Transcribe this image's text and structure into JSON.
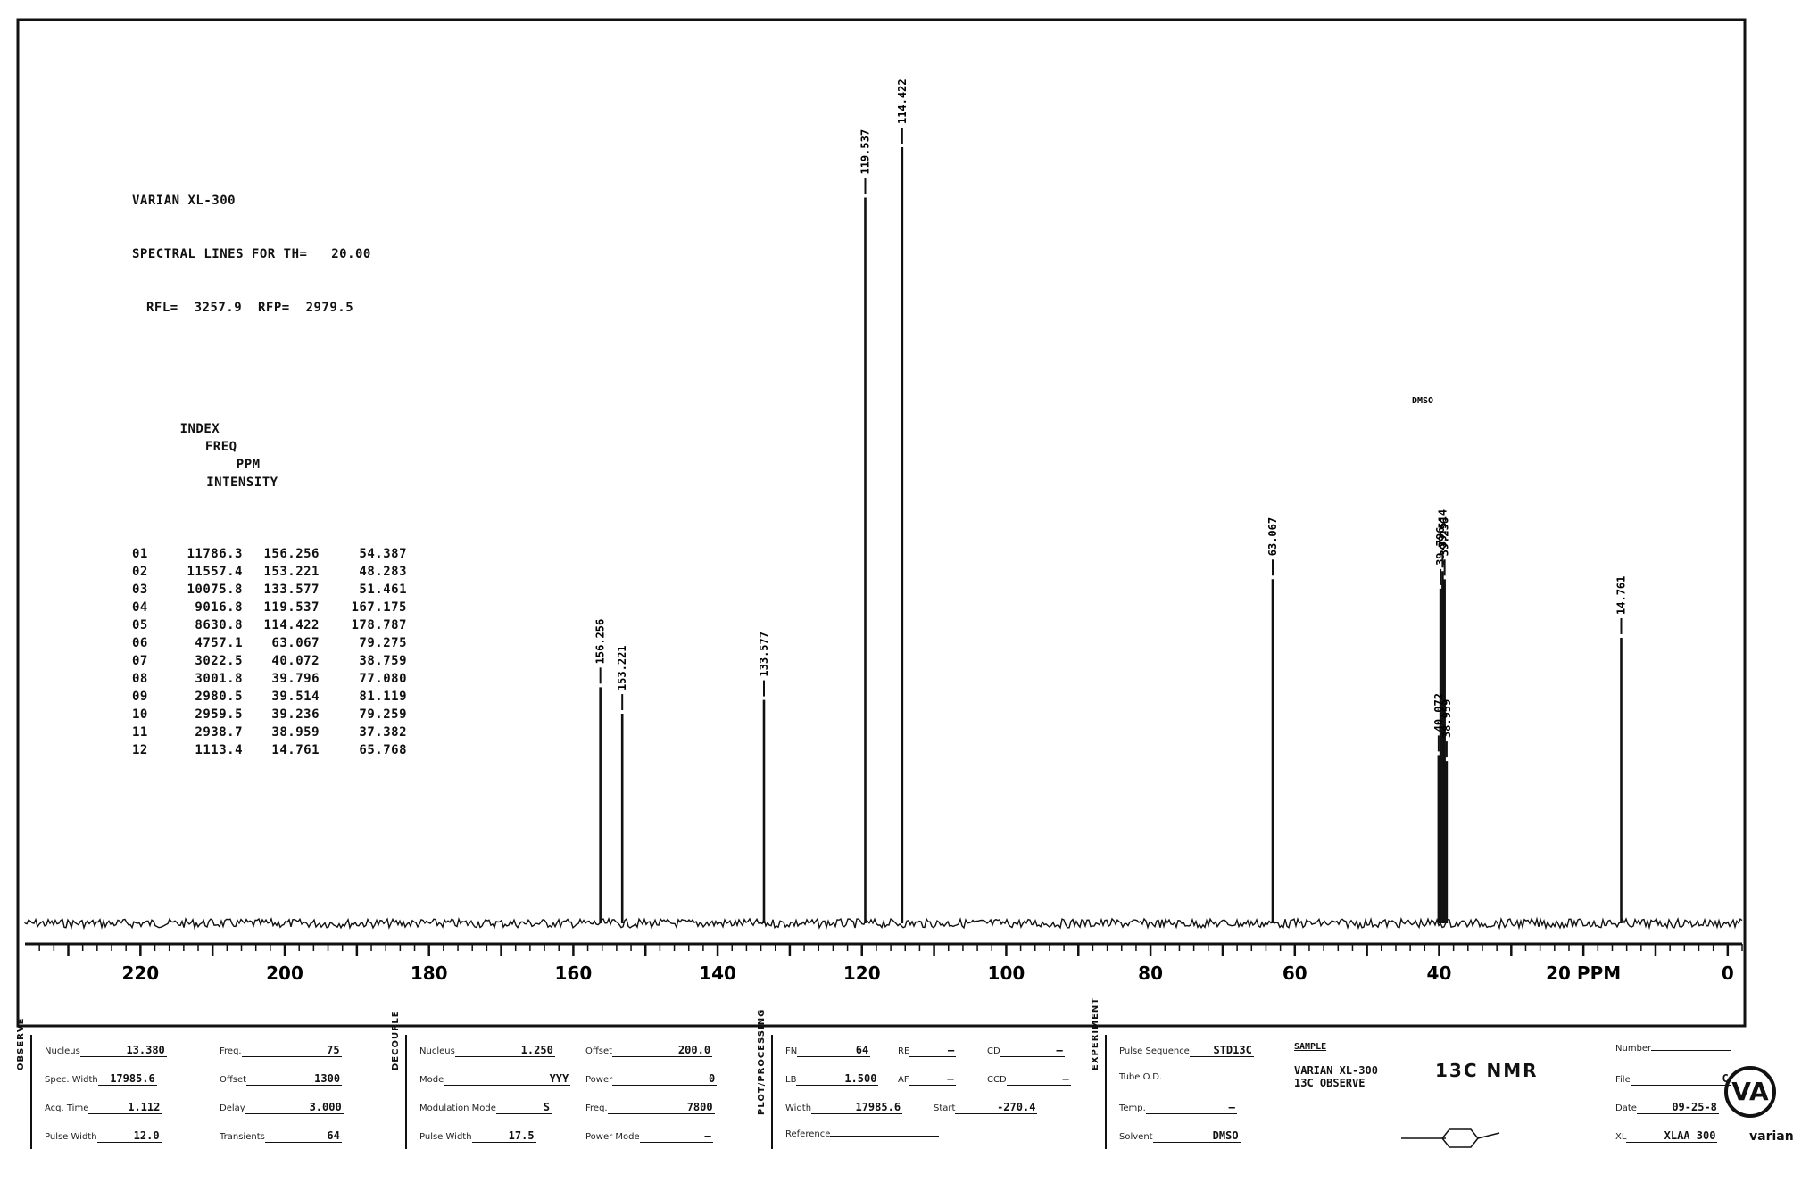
{
  "chart_data": {
    "type": "line",
    "header": {
      "instrument": "VARIAN XL-300",
      "title": "SPECTRAL LINES FOR TH=   20.00",
      "ref": "RFL=  3257.9  RFP=  2979.5"
    },
    "xlabel": "PPM",
    "xlim": [
      236,
      -2
    ],
    "x_ticks": [
      220,
      200,
      180,
      160,
      140,
      120,
      100,
      80,
      60,
      40,
      20,
      0
    ],
    "columns": [
      "INDEX",
      "FREQ",
      "PPM",
      "INTENSITY"
    ],
    "peaks": [
      {
        "index": "01",
        "freq": "11786.3",
        "ppm": 156.256,
        "ppm_label": "156.256",
        "intensity": 54.387
      },
      {
        "index": "02",
        "freq": "11557.4",
        "ppm": 153.221,
        "ppm_label": "153.221",
        "intensity": 48.283
      },
      {
        "index": "03",
        "freq": "10075.8",
        "ppm": 133.577,
        "ppm_label": "133.577",
        "intensity": 51.461
      },
      {
        "index": "04",
        "freq": "9016.8",
        "ppm": 119.537,
        "ppm_label": "119.537",
        "intensity": 167.175
      },
      {
        "index": "05",
        "freq": "8630.8",
        "ppm": 114.422,
        "ppm_label": "114.422",
        "intensity": 178.787
      },
      {
        "index": "06",
        "freq": "4757.1",
        "ppm": 63.067,
        "ppm_label": "63.067",
        "intensity": 79.275
      },
      {
        "index": "07",
        "freq": "3022.5",
        "ppm": 40.072,
        "ppm_label": "40.072",
        "intensity": 38.759
      },
      {
        "index": "08",
        "freq": "3001.8",
        "ppm": 39.796,
        "ppm_label": "39.796",
        "intensity": 77.08
      },
      {
        "index": "09",
        "freq": "2980.5",
        "ppm": 39.514,
        "ppm_label": "39.514",
        "intensity": 81.119
      },
      {
        "index": "10",
        "freq": "2959.5",
        "ppm": 39.236,
        "ppm_label": "39.236",
        "intensity": 79.259
      },
      {
        "index": "11",
        "freq": "2938.7",
        "ppm": 38.959,
        "ppm_label": "38.959",
        "intensity": 37.382
      },
      {
        "index": "12",
        "freq": "1113.4",
        "ppm": 14.761,
        "ppm_label": "14.761",
        "intensity": 65.768
      }
    ],
    "solvent_note": "DMSO"
  },
  "params": {
    "observe": {
      "title": "OBSERVE",
      "fields": [
        {
          "label": "Nucleus",
          "value": "13.380"
        },
        {
          "label": "Spec. Width",
          "value": "17985.6"
        },
        {
          "label": "Acq. Time",
          "value": "1.112"
        },
        {
          "label": "Pulse Width",
          "value": "12.0"
        },
        {
          "label": "Freq.",
          "value": "75"
        },
        {
          "label": "Offset",
          "value": "1300"
        },
        {
          "label": "Delay",
          "value": "3.000"
        },
        {
          "label": "Transients",
          "value": "64"
        }
      ]
    },
    "decouple": {
      "title": "DECOUPLE",
      "fields": [
        {
          "label": "Nucleus",
          "value": "1.250"
        },
        {
          "label": "Mode",
          "value": "YYY"
        },
        {
          "label": "Modulation Mode",
          "value": "S"
        },
        {
          "label": "Pulse Width",
          "value": "17.5"
        },
        {
          "label": "Offset",
          "value": "200.0"
        },
        {
          "label": "Power",
          "value": "0"
        },
        {
          "label": "Freq.",
          "value": "7800"
        },
        {
          "label": "Power Mode",
          "value": "—"
        }
      ]
    },
    "plot": {
      "title": "PLOT/PROCESSING",
      "fields": [
        {
          "label": "FN",
          "value": "64"
        },
        {
          "label": "LB",
          "value": "1.500"
        },
        {
          "label": "Width",
          "value": "17985.6"
        },
        {
          "label": "Reference",
          "value": ""
        },
        {
          "label": "RE",
          "value": "—"
        },
        {
          "label": "AF",
          "value": "—"
        },
        {
          "label": "Start",
          "value": "-270.4"
        },
        {
          "label": "CD",
          "value": "—"
        },
        {
          "label": "CCD",
          "value": "—"
        }
      ]
    },
    "experiment": {
      "title": "EXPERIMENT",
      "fields": [
        {
          "label": "Pulse Sequence",
          "value": "STD13C"
        },
        {
          "label": "Tube O.D.",
          "value": ""
        },
        {
          "label": "Temp.",
          "value": "—"
        },
        {
          "label": "Solvent",
          "value": "DMSO"
        }
      ]
    },
    "sample": {
      "title": "SAMPLE",
      "line1": "VARIAN XL-300",
      "line2": "13C OBSERVE",
      "note": "13C NMR"
    },
    "info": {
      "fields": [
        {
          "label": "Number",
          "value": ""
        },
        {
          "label": "File",
          "value": "C"
        },
        {
          "label": "Date",
          "value": "09-25-8"
        },
        {
          "label": "XL",
          "value": "XLAA 300"
        }
      ],
      "brand": "varian"
    }
  }
}
